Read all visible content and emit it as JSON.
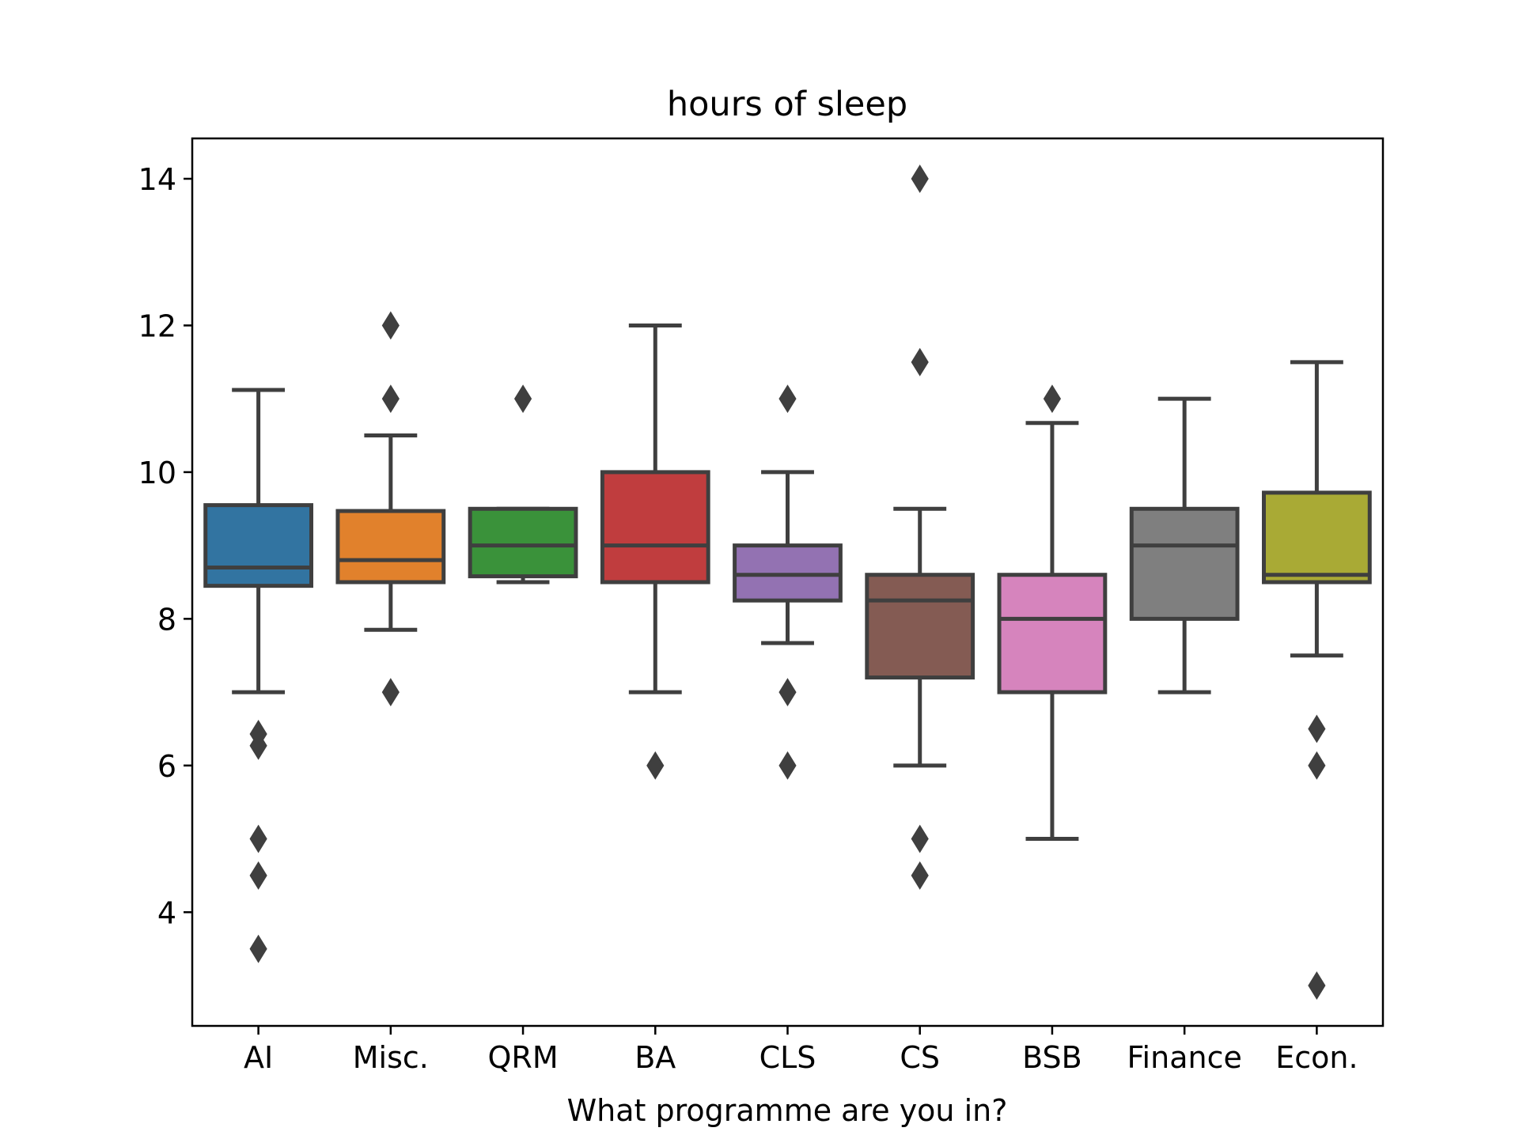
{
  "chart_data": {
    "type": "box",
    "title": "hours of sleep",
    "xlabel": "What programme are you in?",
    "ylabel": "",
    "ylim": [
      2.45,
      14.55
    ],
    "yticks": [
      4,
      6,
      8,
      10,
      12,
      14
    ],
    "ytick_labels": [
      "4",
      "6",
      "8",
      "10",
      "12",
      "14"
    ],
    "grid": false,
    "categories": [
      "AI",
      "Misc.",
      "QRM",
      "BA",
      "CLS",
      "CS",
      "BSB",
      "Finance",
      "Econ."
    ],
    "colors": [
      "#3274a1",
      "#e1812c",
      "#3a923a",
      "#c03d3e",
      "#9372b2",
      "#845b53",
      "#d684bd",
      "#7f7f7f",
      "#a9aa35"
    ],
    "edge_color": "#3f3f3f",
    "boxes": [
      {
        "category": "AI",
        "whisker_low": 7.0,
        "q1": 8.45,
        "median": 8.7,
        "q3": 9.55,
        "whisker_high": 11.12,
        "outliers": [
          6.43,
          6.27,
          5.0,
          4.5,
          3.5
        ]
      },
      {
        "category": "Misc.",
        "whisker_low": 7.85,
        "q1": 8.5,
        "median": 8.8,
        "q3": 9.47,
        "whisker_high": 10.5,
        "outliers": [
          12.0,
          11.0,
          7.0
        ]
      },
      {
        "category": "QRM",
        "whisker_low": 8.5,
        "q1": 8.58,
        "median": 9.0,
        "q3": 9.5,
        "whisker_high": 9.5,
        "outliers": [
          11.0
        ]
      },
      {
        "category": "BA",
        "whisker_low": 7.0,
        "q1": 8.5,
        "median": 9.0,
        "q3": 10.0,
        "whisker_high": 12.0,
        "outliers": [
          6.0
        ]
      },
      {
        "category": "CLS",
        "whisker_low": 7.67,
        "q1": 8.25,
        "median": 8.6,
        "q3": 9.0,
        "whisker_high": 10.0,
        "outliers": [
          11.0,
          7.0,
          6.0
        ]
      },
      {
        "category": "CS",
        "whisker_low": 6.0,
        "q1": 7.2,
        "median": 8.25,
        "q3": 8.6,
        "whisker_high": 9.5,
        "outliers": [
          14.0,
          11.5,
          5.0,
          4.5
        ]
      },
      {
        "category": "BSB",
        "whisker_low": 5.0,
        "q1": 7.0,
        "median": 8.0,
        "q3": 8.6,
        "whisker_high": 10.67,
        "outliers": [
          11.0
        ]
      },
      {
        "category": "Finance",
        "whisker_low": 7.0,
        "q1": 8.0,
        "median": 9.0,
        "q3": 9.5,
        "whisker_high": 11.0,
        "outliers": []
      },
      {
        "category": "Econ.",
        "whisker_low": 7.5,
        "q1": 8.5,
        "median": 8.6,
        "q3": 9.72,
        "whisker_high": 11.5,
        "outliers": [
          6.5,
          6.0,
          3.0
        ]
      }
    ]
  }
}
